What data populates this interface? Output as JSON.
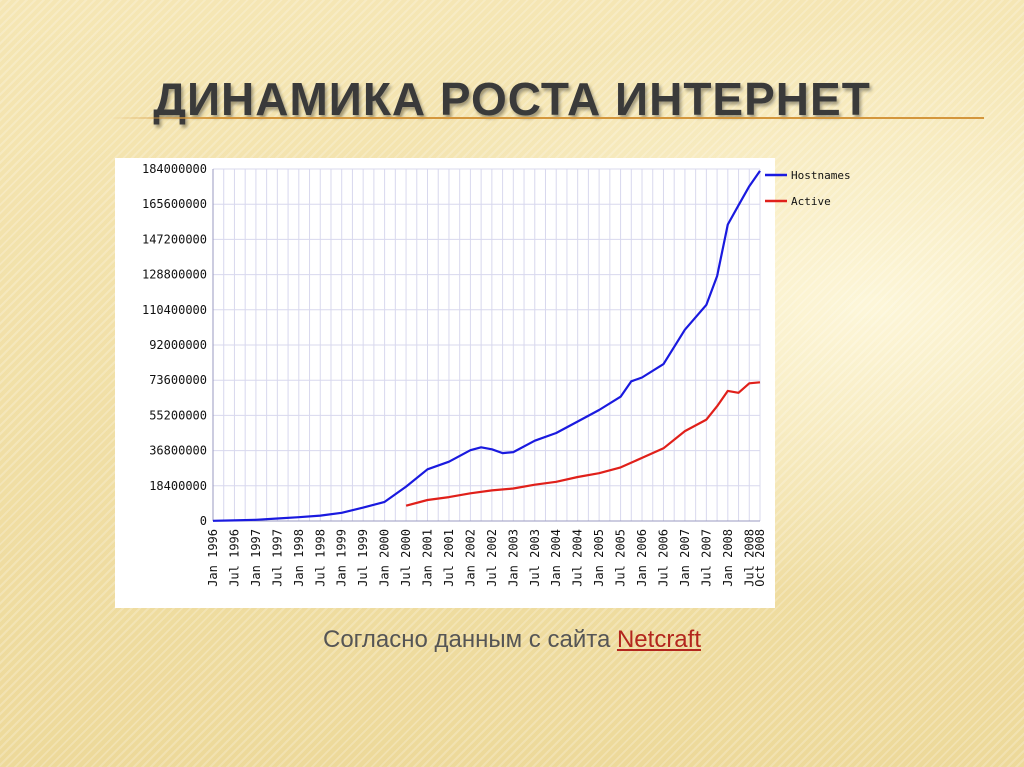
{
  "slide": {
    "title": "ДИНАМИКА РОСТА ИНТЕРНЕТ",
    "caption_text": "Согласно данным с сайта ",
    "caption_link": "Netcraft"
  },
  "colors": {
    "hostnames": "#1a1adf",
    "active": "#e0201a",
    "grid": "#d8d8ee",
    "axis_text": "#111111",
    "rule": "#d4963c"
  },
  "chart_data": {
    "type": "line",
    "title": "",
    "xlabel": "",
    "ylabel": "",
    "ylim": [
      0,
      184000000
    ],
    "grid": true,
    "legend_position": "top-right",
    "y_ticks": [
      "0",
      "18400000",
      "36800000",
      "55200000",
      "73600000",
      "92000000",
      "110400000",
      "128800000",
      "147200000",
      "165600000",
      "184000000"
    ],
    "x_tick_labels": [
      "Jan 1996",
      "Jul 1996",
      "Jan 1997",
      "Jul 1997",
      "Jan 1998",
      "Jul 1998",
      "Jan 1999",
      "Jul 1999",
      "Jan 2000",
      "Jul 2000",
      "Jan 2001",
      "Jul 2001",
      "Jan 2002",
      "Jul 2002",
      "Jan 2003",
      "Jul 2003",
      "Jan 2004",
      "Jul 2004",
      "Jan 2005",
      "Jul 2005",
      "Jan 2006",
      "Jul 2006",
      "Jan 2007",
      "Jul 2007",
      "Jan 2008",
      "Jul 2008",
      "Oct 2008"
    ],
    "series": [
      {
        "name": "Hostnames",
        "points": [
          [
            "1996-01",
            100000
          ],
          [
            "1996-07",
            300000
          ],
          [
            "1997-01",
            650000
          ],
          [
            "1997-07",
            1300000
          ],
          [
            "1998-01",
            2000000
          ],
          [
            "1998-07",
            2800000
          ],
          [
            "1999-01",
            4300000
          ],
          [
            "1999-07",
            7000000
          ],
          [
            "2000-01",
            10000000
          ],
          [
            "2000-07",
            18000000
          ],
          [
            "2001-01",
            27000000
          ],
          [
            "2001-07",
            31000000
          ],
          [
            "2002-01",
            37000000
          ],
          [
            "2002-04",
            38500000
          ],
          [
            "2002-07",
            37500000
          ],
          [
            "2002-10",
            35500000
          ],
          [
            "2003-01",
            36000000
          ],
          [
            "2003-07",
            42000000
          ],
          [
            "2004-01",
            46000000
          ],
          [
            "2004-07",
            52000000
          ],
          [
            "2005-01",
            58000000
          ],
          [
            "2005-07",
            65000000
          ],
          [
            "2005-10",
            73000000
          ],
          [
            "2006-01",
            75000000
          ],
          [
            "2006-07",
            82000000
          ],
          [
            "2007-01",
            100000000
          ],
          [
            "2007-07",
            113000000
          ],
          [
            "2007-10",
            128000000
          ],
          [
            "2008-01",
            155000000
          ],
          [
            "2008-04",
            165000000
          ],
          [
            "2008-07",
            175000000
          ],
          [
            "2008-10",
            183000000
          ]
        ]
      },
      {
        "name": "Active",
        "points": [
          [
            "2000-07",
            8000000
          ],
          [
            "2001-01",
            11000000
          ],
          [
            "2001-07",
            12500000
          ],
          [
            "2002-01",
            14500000
          ],
          [
            "2002-07",
            16000000
          ],
          [
            "2003-01",
            17000000
          ],
          [
            "2003-07",
            19000000
          ],
          [
            "2004-01",
            20500000
          ],
          [
            "2004-07",
            23000000
          ],
          [
            "2005-01",
            25000000
          ],
          [
            "2005-07",
            28000000
          ],
          [
            "2006-01",
            33000000
          ],
          [
            "2006-07",
            38000000
          ],
          [
            "2007-01",
            47000000
          ],
          [
            "2007-07",
            53000000
          ],
          [
            "2007-10",
            60000000
          ],
          [
            "2008-01",
            68000000
          ],
          [
            "2008-04",
            67000000
          ],
          [
            "2008-07",
            72000000
          ],
          [
            "2008-10",
            72500000
          ]
        ]
      }
    ]
  }
}
